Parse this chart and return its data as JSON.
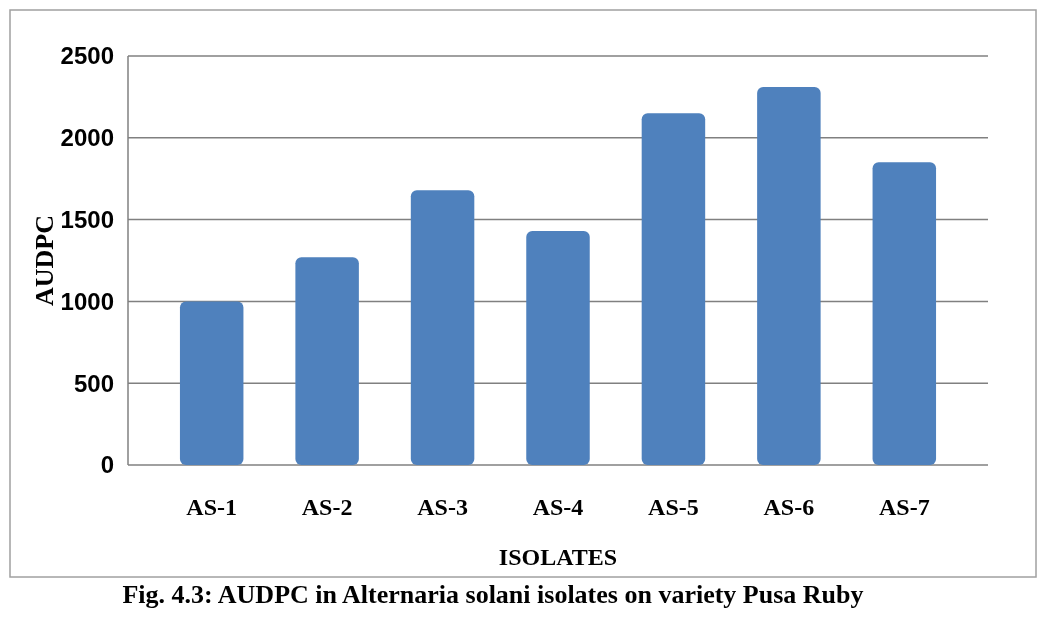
{
  "chart_data": {
    "type": "bar",
    "title": "Fig. 4.3: AUDPC in Alternaria solani isolates on variety Pusa Ruby",
    "xlabel": "ISOLATES",
    "ylabel": "AUDPC",
    "categories": [
      "AS-1",
      "AS-2",
      "AS-3",
      "AS-4",
      "AS-5",
      "AS-6",
      "AS-7"
    ],
    "values": [
      1000,
      1270,
      1680,
      1430,
      2150,
      2310,
      1850
    ],
    "color": "#4f81bd",
    "ylim": [
      0,
      2500
    ],
    "yticks": [
      0,
      500,
      1000,
      1500,
      2000,
      2500
    ],
    "grid": "y"
  }
}
